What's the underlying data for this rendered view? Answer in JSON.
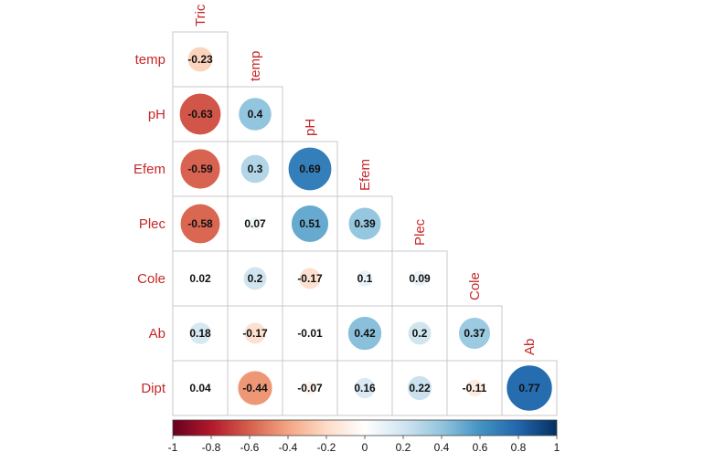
{
  "chart_data": {
    "type": "heatmap",
    "subtype": "correlation-circles-lower-triangle",
    "variables": [
      "Tric",
      "temp",
      "pH",
      "Efem",
      "Plec",
      "Cole",
      "Ab",
      "Dipt"
    ],
    "row_labels": [
      "temp",
      "pH",
      "Efem",
      "Plec",
      "Cole",
      "Ab",
      "Dipt"
    ],
    "col_labels": [
      "Tric",
      "temp",
      "pH",
      "Efem",
      "Plec",
      "Cole",
      "Ab"
    ],
    "matrix": [
      [
        -0.23
      ],
      [
        -0.63,
        0.4
      ],
      [
        -0.59,
        0.3,
        0.69
      ],
      [
        -0.58,
        0.07,
        0.51,
        0.39
      ],
      [
        0.02,
        0.2,
        -0.17,
        0.1,
        0.09
      ],
      [
        0.18,
        -0.17,
        -0.01,
        0.42,
        0.2,
        0.37
      ],
      [
        0.04,
        -0.44,
        -0.07,
        0.16,
        0.22,
        -0.11,
        0.77
      ]
    ],
    "labels": [
      [
        "-0.23"
      ],
      [
        "-0.63",
        "0.4"
      ],
      [
        "-0.59",
        "0.3",
        "0.69"
      ],
      [
        "-0.58",
        "0.07",
        "0.51",
        "0.39"
      ],
      [
        "0.02",
        "0.2",
        "-0.17",
        "0.1",
        "0.09"
      ],
      [
        "0.18",
        "-0.17",
        "-0.01",
        "0.42",
        "0.2",
        "0.37"
      ],
      [
        "0.04",
        "-0.44",
        "-0.07",
        "0.16",
        "0.22",
        "-0.11",
        "0.77"
      ]
    ],
    "colorbar": {
      "range": [
        -1,
        1
      ],
      "ticks": [
        "-1",
        "-0.8",
        "-0.6",
        "-0.4",
        "-0.2",
        "0",
        "0.2",
        "0.4",
        "0.6",
        "0.8",
        "1"
      ],
      "tick_values": [
        -1,
        -0.8,
        -0.6,
        -0.4,
        -0.2,
        0,
        0.2,
        0.4,
        0.6,
        0.8,
        1
      ],
      "colors": [
        "#67001f",
        "#b2182b",
        "#d6604d",
        "#f4a582",
        "#fddbc7",
        "#ffffff",
        "#d1e5f0",
        "#92c5de",
        "#4393c3",
        "#2166ac",
        "#053061"
      ]
    },
    "label_color": "#c62828",
    "grid_color": "#c9c9c9"
  }
}
